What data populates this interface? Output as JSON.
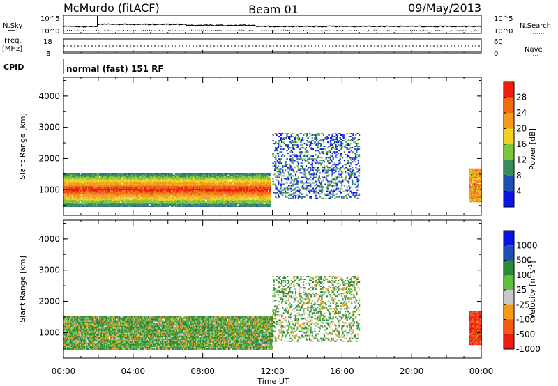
{
  "header": {
    "station": "McMurdo (fitACF)",
    "beam": "Beam 01",
    "date": "09/May/2013"
  },
  "sky_panel": {
    "left_label": "N.Sky",
    "right_label": "N.Search",
    "left_ticks": [
      "10^5",
      "10^0"
    ],
    "right_ticks": [
      "10^5",
      "10^0"
    ]
  },
  "freq_panel": {
    "left_label_1": "Freq.",
    "left_label_2": "[MHz]",
    "right_label": "Nave",
    "left_ticks": [
      "18",
      "8"
    ],
    "right_ticks": [
      "60",
      "0"
    ]
  },
  "cpid": {
    "label": "CPID",
    "text": "normal (fast) 151 RF"
  },
  "colorbars": {
    "colors": {
      "power": [
        "#0a14e6",
        "#1e4fb4",
        "#3a8a5a",
        "#7cc63c",
        "#f0d020",
        "#f39a1e",
        "#f26a10",
        "#ee1c0c"
      ],
      "velocity": [
        "#ee1c0c",
        "#f05a12",
        "#f79a18",
        "#c8c8c8",
        "#5fc03a",
        "#2a8a3a",
        "#1e4fb4",
        "#0a14e6"
      ]
    }
  },
  "chart_data": [
    {
      "type": "heatmap",
      "title": "",
      "xlabel": "Time UT",
      "ylabel": "Slant Range [km]",
      "x_ticks": [
        "00:00",
        "04:00",
        "08:00",
        "12:00",
        "16:00",
        "20:00",
        "00:00"
      ],
      "x_range_hours": [
        0,
        24
      ],
      "y_ticks": [
        "1000",
        "2000",
        "3000",
        "4000"
      ],
      "y_range_km": [
        180,
        4600
      ],
      "colorbar": {
        "label": "Power [dB]",
        "ticks": [
          "4",
          "8",
          "12",
          "16",
          "20",
          "24",
          "28"
        ],
        "range": [
          0,
          32
        ]
      },
      "scatter_regions": [
        {
          "t_start": 0.0,
          "t_end": 11.9,
          "r_low": 450,
          "r_high": 1500,
          "value": 26
        },
        {
          "t_start": 12.0,
          "t_end": 17.0,
          "r_low": 700,
          "r_high": 2800,
          "value": 7
        },
        {
          "t_start": 23.3,
          "t_end": 24.0,
          "r_low": 600,
          "r_high": 1650,
          "value": 22
        }
      ]
    },
    {
      "type": "heatmap",
      "title": "",
      "xlabel": "Time UT",
      "ylabel": "Slant Range [km]",
      "x_ticks": [
        "00:00",
        "04:00",
        "08:00",
        "12:00",
        "16:00",
        "20:00",
        "00:00"
      ],
      "x_range_hours": [
        0,
        24
      ],
      "y_ticks": [
        "1000",
        "2000",
        "3000",
        "4000"
      ],
      "y_range_km": [
        180,
        4600
      ],
      "colorbar": {
        "label": "Velocity [m s^-1]",
        "ticks": [
          "1000",
          "500",
          "100",
          "25",
          "-25",
          "-100",
          "-500",
          "-1000"
        ]
      },
      "scatter_regions": [
        {
          "t_start": 0.0,
          "t_end": 12.0,
          "r_low": 450,
          "r_high": 1500,
          "value": 100
        },
        {
          "t_start": 12.0,
          "t_end": 17.0,
          "r_low": 700,
          "r_high": 2800,
          "value": 100
        },
        {
          "t_start": 23.3,
          "t_end": 24.0,
          "r_low": 600,
          "r_high": 1650,
          "value": -500
        }
      ]
    }
  ]
}
